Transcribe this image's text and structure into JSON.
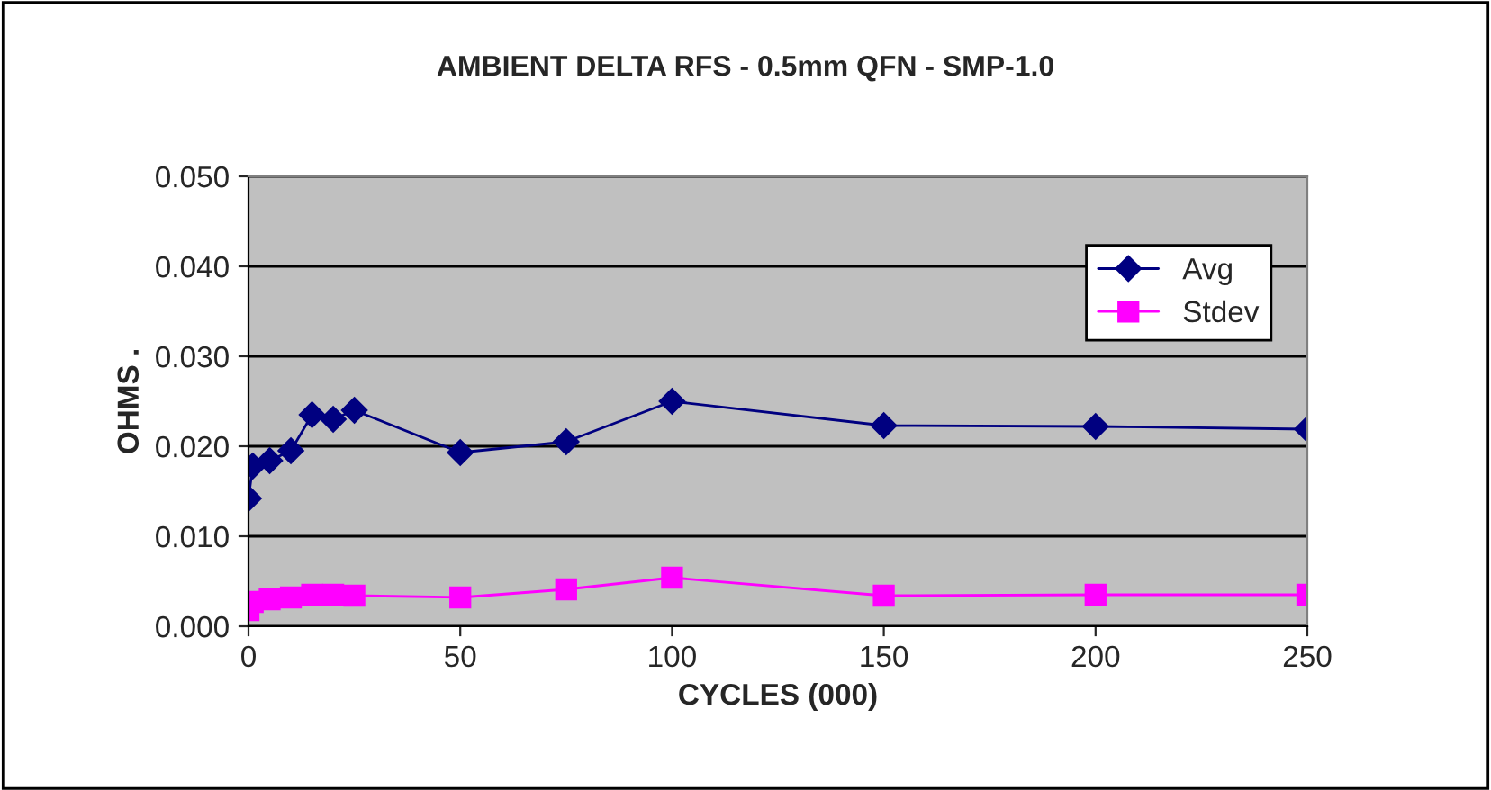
{
  "chart_data": {
    "type": "line",
    "title": "AMBIENT DELTA RFS - 0.5mm QFN - SMP-1.0",
    "xlabel": "CYCLES (000)",
    "ylabel": "OHMS .",
    "x": [
      0,
      1,
      5,
      10,
      15,
      20,
      25,
      50,
      75,
      100,
      150,
      200,
      250
    ],
    "series": [
      {
        "name": "Avg",
        "color": "#000080",
        "marker": "diamond",
        "values": [
          0.0142,
          0.0178,
          0.0184,
          0.0195,
          0.0235,
          0.023,
          0.024,
          0.0193,
          0.0205,
          0.025,
          0.0223,
          0.0222,
          0.0219
        ]
      },
      {
        "name": "Stdev",
        "color": "#ff00ff",
        "marker": "square",
        "values": [
          0.0018,
          0.0027,
          0.003,
          0.0032,
          0.0035,
          0.0035,
          0.0034,
          0.0032,
          0.0041,
          0.0054,
          0.0034,
          0.0035,
          0.0035
        ]
      }
    ],
    "xlim": [
      0,
      250
    ],
    "xticks": [
      0,
      50,
      100,
      150,
      200,
      250
    ],
    "ylim": [
      0,
      0.05
    ],
    "yticks": [
      {
        "value": 0,
        "label": "0.000"
      },
      {
        "value": 0.01,
        "label": "0.010"
      },
      {
        "value": 0.02,
        "label": "0.020"
      },
      {
        "value": 0.03,
        "label": "0.030"
      },
      {
        "value": 0.04,
        "label": "0.040"
      },
      {
        "value": 0.05,
        "label": "0.050"
      }
    ],
    "grid": "y",
    "legend": "top right",
    "line_style": "solid"
  }
}
